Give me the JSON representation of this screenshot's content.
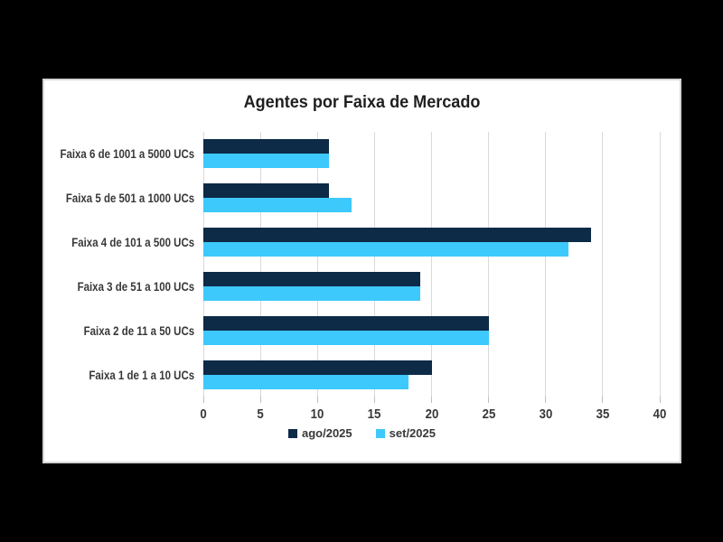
{
  "chart_data": {
    "type": "bar",
    "orientation": "horizontal",
    "title": "Agentes por Faixa de Mercado",
    "categories": [
      "Faixa 6 de 1001 a 5000 UCs",
      "Faixa 5 de 501 a 1000 UCs",
      "Faixa 4 de 101 a 500 UCs",
      "Faixa 3 de 51 a 100 UCs",
      "Faixa 2 de 11 a 50 UCs",
      "Faixa 1 de 1 a 10 UCs"
    ],
    "series": [
      {
        "name": "ago/2025",
        "color": "#0D2A47",
        "values": [
          11,
          11,
          34,
          19,
          25,
          20
        ]
      },
      {
        "name": "set/2025",
        "color": "#3DC9FC",
        "values": [
          11,
          13,
          32,
          19,
          25,
          18
        ]
      }
    ],
    "xlim": [
      0,
      40
    ],
    "x_ticks": [
      0,
      5,
      10,
      15,
      20,
      25,
      30,
      35,
      40
    ],
    "grid": "vertical",
    "legend_position": "bottom"
  },
  "colors": {
    "background": "#000000",
    "card_background": "#FFFFFF",
    "card_border": "#D5D5D5",
    "gridline": "#D9D9D9",
    "tick": "#BFBFBF",
    "title_text": "#1F1F1F",
    "label_text": "#383838"
  }
}
